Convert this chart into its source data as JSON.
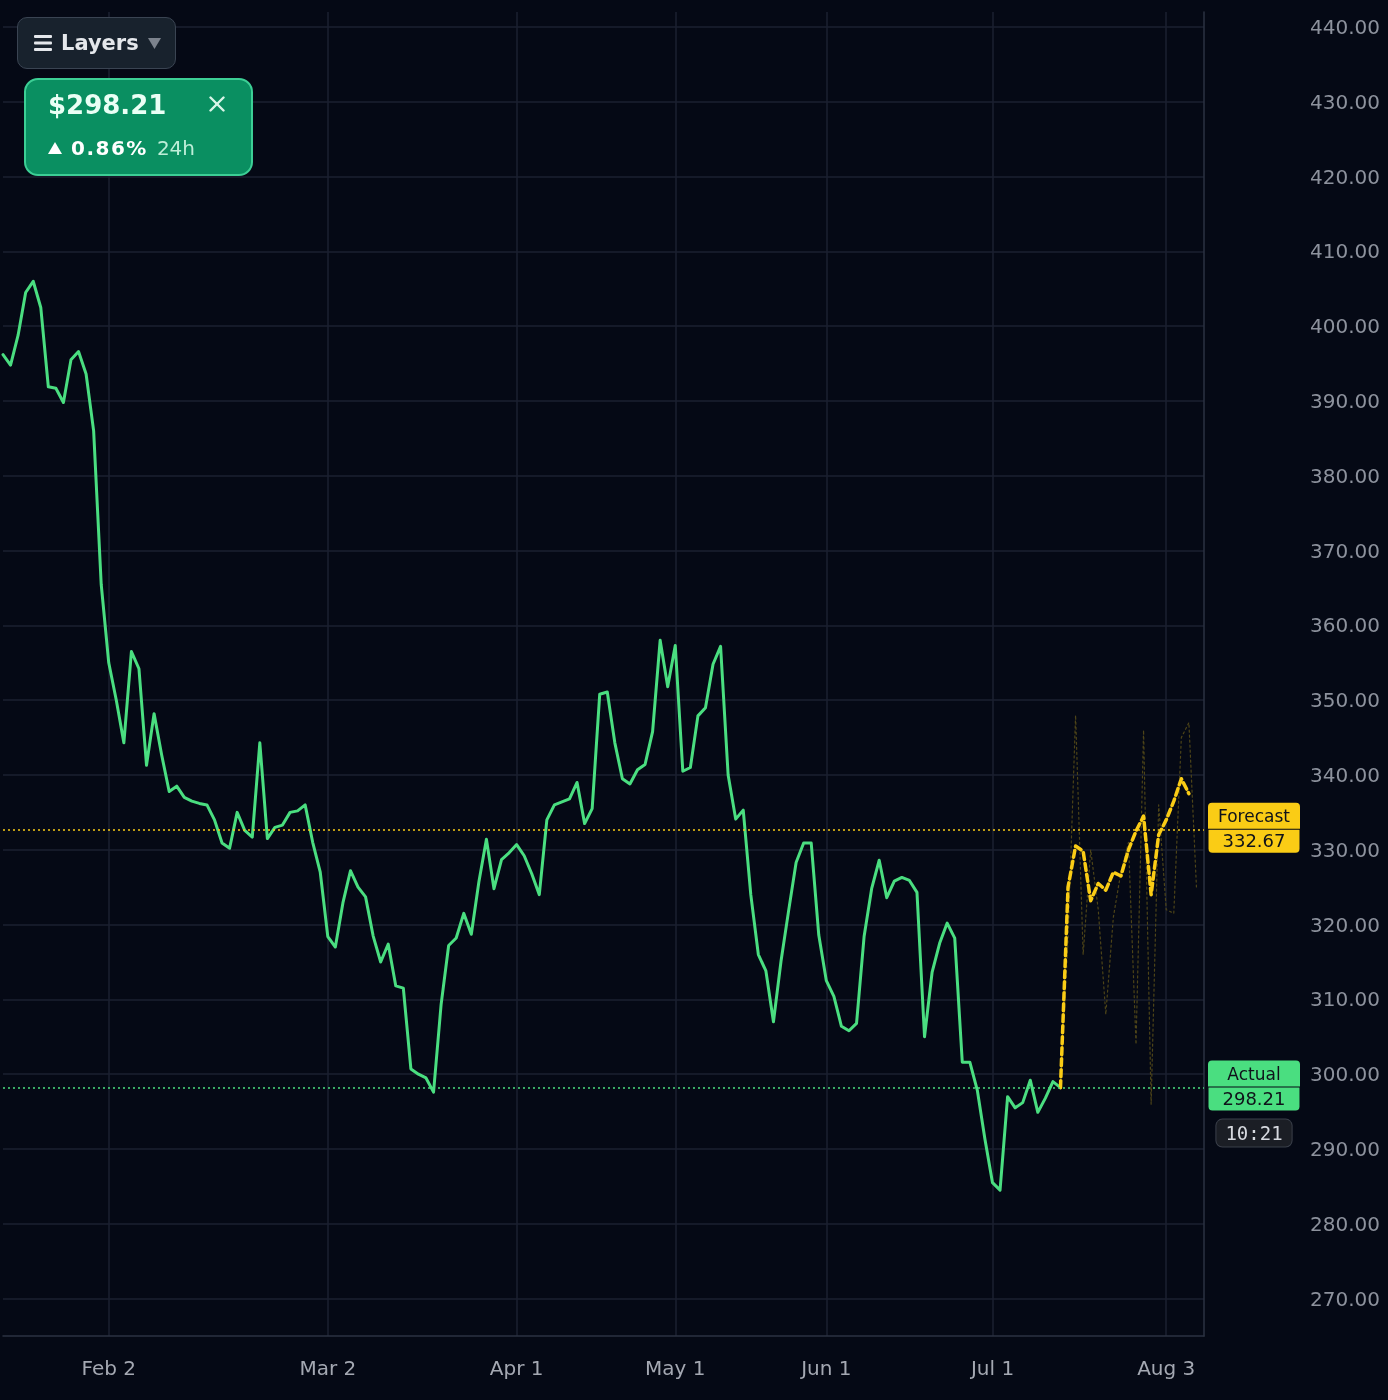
{
  "chart_data": {
    "type": "line",
    "categories": [
      null,
      null,
      null,
      null,
      null,
      null,
      null,
      null,
      null,
      null,
      null,
      null,
      null,
      null,
      "Feb 2",
      null,
      null,
      null,
      null,
      null,
      null,
      null,
      null,
      null,
      null,
      null,
      null,
      null,
      null,
      null,
      null,
      null,
      null,
      null,
      null,
      null,
      null,
      null,
      null,
      null,
      null,
      null,
      null,
      "Mar 2",
      null,
      null,
      null,
      null,
      null,
      null,
      null,
      null,
      null,
      null,
      null,
      null,
      null,
      null,
      null,
      null,
      null,
      null,
      null,
      null,
      null,
      null,
      null,
      null,
      "Apr 1",
      null,
      null,
      null,
      null,
      null,
      null,
      null,
      null,
      null,
      null,
      null,
      null,
      null,
      null,
      null,
      null,
      null,
      null,
      null,
      null,
      "May 1",
      null,
      null,
      null,
      null,
      null,
      null,
      null,
      null,
      null,
      null,
      null,
      null,
      null,
      null,
      null,
      null,
      null,
      null,
      null,
      "Jun 1",
      null,
      null,
      null,
      null,
      null,
      null,
      null,
      null,
      null,
      null,
      null,
      null,
      null,
      null,
      null,
      null,
      null,
      null,
      null,
      null,
      null,
      "Jul 1",
      null,
      null,
      null,
      null,
      null,
      null,
      null,
      null,
      null,
      null,
      null,
      null,
      null,
      null,
      null,
      null,
      null,
      null,
      null,
      null,
      null,
      null,
      "Aug 3",
      null,
      null,
      null,
      null,
      null
    ],
    "series": [
      {
        "color": "#4ade80",
        "line_style": "solid",
        "values": [
          396.2,
          394.8,
          398.8,
          404.5,
          406,
          402.5,
          391.9,
          391.7,
          389.8,
          395.5,
          396.6,
          393.6,
          386,
          365.5,
          355,
          350,
          344.3,
          356.5,
          354.2,
          341.3,
          348.2,
          342.7,
          337.8,
          338.5,
          337,
          336.5,
          336.2,
          336,
          334,
          330.9,
          330.2,
          335,
          332.6,
          331.7,
          344.3,
          331.5,
          333,
          333.3,
          335,
          335.2,
          336,
          331,
          327,
          318.4,
          317,
          322.9,
          327.2,
          325,
          323.7,
          318.5,
          315,
          317.4,
          311.8,
          311.5,
          300.7,
          300,
          299.5,
          297.6,
          309.3,
          317.2,
          318.2,
          321.5,
          318.7,
          325.7,
          331.4,
          324.8,
          328.7,
          329.6,
          330.7,
          329.2,
          326.8,
          324,
          334,
          336,
          336.4,
          336.8,
          339,
          333.5,
          335.5,
          350.8,
          351.1,
          344.3,
          339.5,
          338.8,
          340.7,
          341.4,
          345.8,
          358,
          351.8,
          357.3,
          340.5,
          341,
          347.9,
          349,
          354.8,
          357.2,
          340,
          334.1,
          335.3,
          324,
          316,
          313.8,
          307,
          315.1,
          321.8,
          328.3,
          330.9,
          330.9,
          318.6,
          312.5,
          310.4,
          306.4,
          305.8,
          306.8,
          318.4,
          324.8,
          328.6,
          323.6,
          325.8,
          326.3,
          325.9,
          324.3,
          305,
          313.6,
          317.5,
          320.2,
          318.2,
          301.6,
          301.6,
          297.8,
          291.3,
          285.5,
          284.5,
          297,
          295.5,
          296.2,
          299.2,
          294.9,
          296.8,
          299,
          298.2,
          null,
          null,
          null,
          null,
          null,
          null,
          null,
          null,
          null,
          null,
          null,
          null,
          null,
          null,
          null,
          null,
          null,
          null,
          null
        ]
      },
      {
        "color": "#4d4418",
        "line_style": "dotted",
        "values": [
          null,
          null,
          null,
          null,
          null,
          null,
          null,
          null,
          null,
          null,
          null,
          null,
          null,
          null,
          null,
          null,
          null,
          null,
          null,
          null,
          null,
          null,
          null,
          null,
          null,
          null,
          null,
          null,
          null,
          null,
          null,
          null,
          null,
          null,
          null,
          null,
          null,
          null,
          null,
          null,
          null,
          null,
          null,
          null,
          null,
          null,
          null,
          null,
          null,
          null,
          null,
          null,
          null,
          null,
          null,
          null,
          null,
          null,
          null,
          null,
          null,
          null,
          null,
          null,
          null,
          null,
          null,
          null,
          null,
          null,
          null,
          null,
          null,
          null,
          null,
          null,
          null,
          null,
          null,
          null,
          null,
          null,
          null,
          null,
          null,
          null,
          null,
          null,
          null,
          null,
          null,
          null,
          null,
          null,
          null,
          null,
          null,
          null,
          null,
          null,
          null,
          null,
          null,
          null,
          null,
          null,
          null,
          null,
          null,
          null,
          null,
          null,
          null,
          null,
          null,
          null,
          null,
          null,
          null,
          null,
          null,
          null,
          null,
          null,
          null,
          null,
          null,
          null,
          null,
          null,
          null,
          null,
          null,
          null,
          null,
          null,
          null,
          null,
          null,
          null,
          298.2,
          318,
          348,
          316,
          330,
          322,
          308,
          321,
          327,
          331,
          304,
          346,
          296,
          336,
          322,
          321.5,
          345,
          347,
          325,
          null
        ]
      },
      {
        "color": "#facc15",
        "line_style": "dashed",
        "values": [
          null,
          null,
          null,
          null,
          null,
          null,
          null,
          null,
          null,
          null,
          null,
          null,
          null,
          null,
          null,
          null,
          null,
          null,
          null,
          null,
          null,
          null,
          null,
          null,
          null,
          null,
          null,
          null,
          null,
          null,
          null,
          null,
          null,
          null,
          null,
          null,
          null,
          null,
          null,
          null,
          null,
          null,
          null,
          null,
          null,
          null,
          null,
          null,
          null,
          null,
          null,
          null,
          null,
          null,
          null,
          null,
          null,
          null,
          null,
          null,
          null,
          null,
          null,
          null,
          null,
          null,
          null,
          null,
          null,
          null,
          null,
          null,
          null,
          null,
          null,
          null,
          null,
          null,
          null,
          null,
          null,
          null,
          null,
          null,
          null,
          null,
          null,
          null,
          null,
          null,
          null,
          null,
          null,
          null,
          null,
          null,
          null,
          null,
          null,
          null,
          null,
          null,
          null,
          null,
          null,
          null,
          null,
          null,
          null,
          null,
          null,
          null,
          null,
          null,
          null,
          null,
          null,
          null,
          null,
          null,
          null,
          null,
          null,
          null,
          null,
          null,
          null,
          null,
          null,
          null,
          null,
          null,
          null,
          null,
          null,
          null,
          null,
          null,
          null,
          null,
          298.2,
          325,
          330.5,
          329.8,
          323.2,
          325.5,
          324.6,
          327,
          326.5,
          330,
          332.5,
          334.5,
          324,
          332,
          334,
          336.5,
          339.5,
          337.5,
          null,
          null
        ]
      }
    ],
    "ylim": [
      265,
      442
    ],
    "yticks": [
      {
        "value": 270,
        "label": "270.00"
      },
      {
        "value": 280,
        "label": "280.00"
      },
      {
        "value": 290,
        "label": "290.00"
      },
      {
        "value": 300,
        "label": "300.00"
      },
      {
        "value": 310,
        "label": "310.00"
      },
      {
        "value": 320,
        "label": "320.00"
      },
      {
        "value": 330,
        "label": "330.00"
      },
      {
        "value": 340,
        "label": "340.00"
      },
      {
        "value": 350,
        "label": "350.00"
      },
      {
        "value": 360,
        "label": "360.00"
      },
      {
        "value": 370,
        "label": "370.00"
      },
      {
        "value": 380,
        "label": "380.00"
      },
      {
        "value": 390,
        "label": "390.00"
      },
      {
        "value": 400,
        "label": "400.00"
      },
      {
        "value": 410,
        "label": "410.00"
      },
      {
        "value": 420,
        "label": "420.00"
      },
      {
        "value": 430,
        "label": "430.00"
      },
      {
        "value": 440,
        "label": "440.00"
      }
    ],
    "grid": true,
    "marker": "none",
    "ref_lines": [
      {
        "axis": "y",
        "value": 332.67,
        "label": "Forecast",
        "color": "#facc15",
        "line_style": "dotted"
      },
      {
        "axis": "y",
        "value": 298.21,
        "label": "Actual",
        "color": "#4ade80",
        "line_style": "dotted"
      }
    ],
    "annotations": [
      "Layers",
      "$298.21",
      "0.86%",
      "24h",
      "332.67",
      "298.21",
      "10:21"
    ]
  }
}
